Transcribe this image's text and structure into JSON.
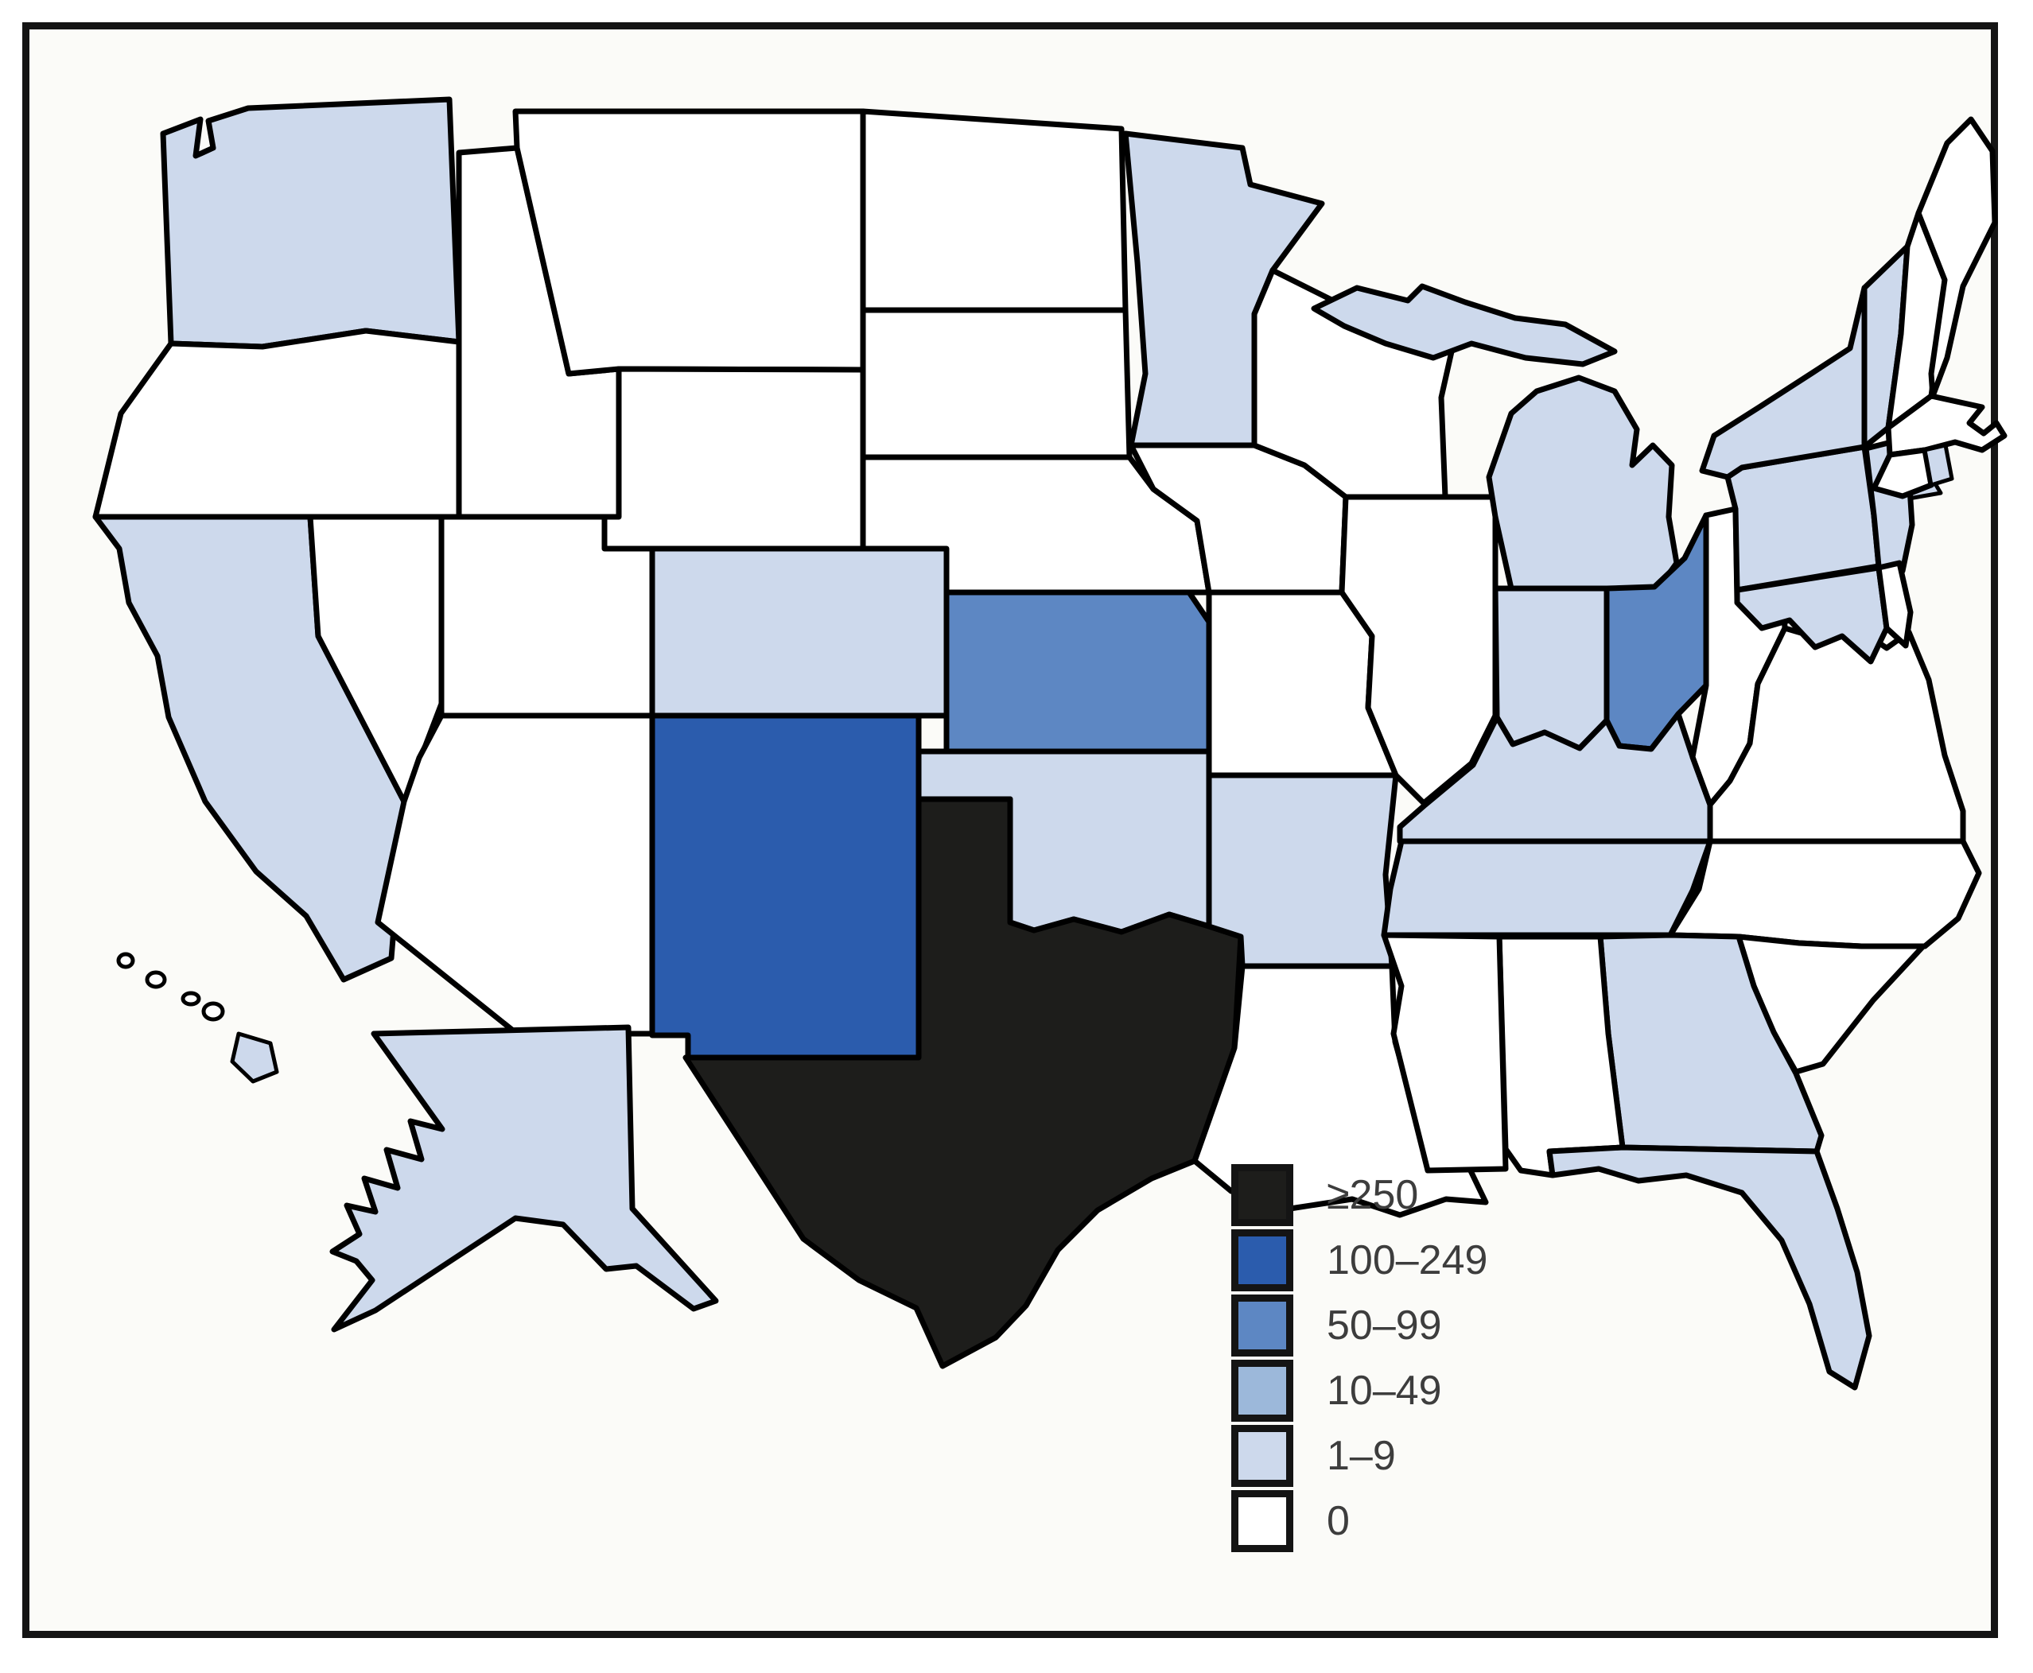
{
  "figure": {
    "type": "us-state-choropleth",
    "background_color": "#fbfbf8",
    "frame_color": "#141414",
    "state_border_color": "#000000"
  },
  "legend": {
    "items": [
      {
        "category": "250+",
        "label": "≥250",
        "color": "#1d1d1b"
      },
      {
        "category": "100-249",
        "label": "100–249",
        "color": "#2b5cad"
      },
      {
        "category": "50-99",
        "label": "50–99",
        "color": "#5d87c3"
      },
      {
        "category": "10-49",
        "label": "10–49",
        "color": "#9cb8da"
      },
      {
        "category": "1-9",
        "label": "1–9",
        "color": "#cdd9ec"
      },
      {
        "category": "0",
        "label": "0",
        "color": "#ffffff"
      }
    ]
  },
  "chart_data": {
    "type": "choropleth",
    "region": "United States",
    "legend_title": "",
    "categories": [
      "250+",
      "100-249",
      "50-99",
      "10-49",
      "1-9",
      "0"
    ],
    "states": {
      "WA": "1-9",
      "OR": "0",
      "CA": "1-9",
      "NV": "0",
      "ID": "0",
      "MT": "0",
      "WY": "0",
      "UT": "0",
      "AZ": "0",
      "CO": "1-9",
      "NM": "100-249",
      "ND": "0",
      "SD": "0",
      "NE": "0",
      "KS": "50-99",
      "OK": "1-9",
      "TX": "250+",
      "MN": "1-9",
      "IA": "0",
      "MO": "0",
      "AR": "1-9",
      "LA": "0",
      "WI": "0",
      "IL": "0",
      "MS": "0",
      "MI": "1-9",
      "IN": "1-9",
      "OH": "50-99",
      "KY": "1-9",
      "TN": "1-9",
      "AL": "0",
      "GA": "1-9",
      "FL": "1-9",
      "SC": "0",
      "NC": "0",
      "VA": "0",
      "WV": "0",
      "PA": "1-9",
      "NY": "1-9",
      "NJ": "1-9",
      "MD": "1-9",
      "DE": "0",
      "VT": "1-9",
      "NH": "0",
      "ME": "0",
      "MA": "0",
      "CT": "0",
      "RI": "1-9",
      "AK": "1-9",
      "HI": "1-9"
    }
  }
}
